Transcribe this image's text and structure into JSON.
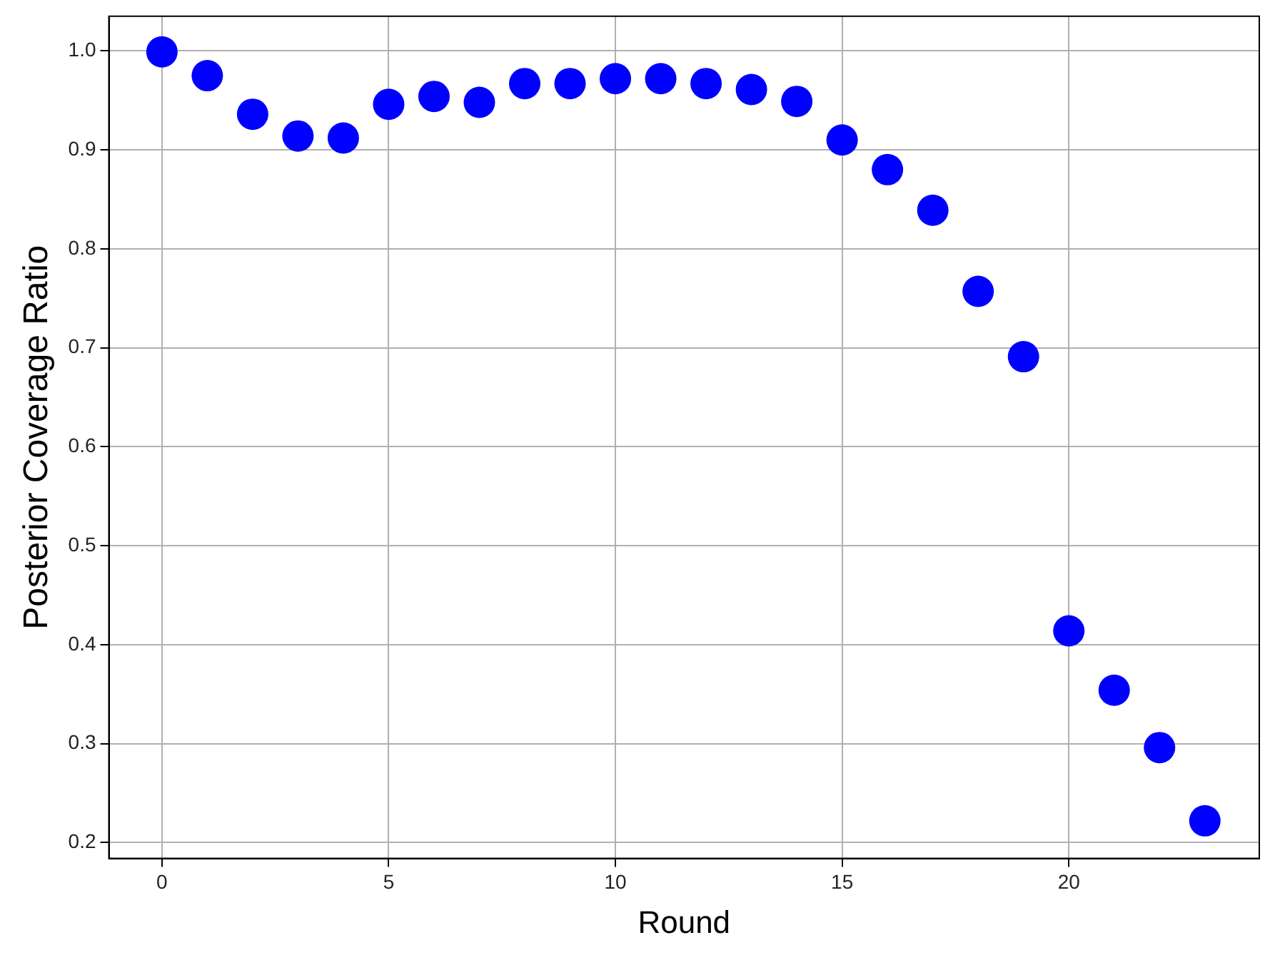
{
  "chart_data": {
    "type": "scatter",
    "xlabel": "Round",
    "ylabel": "Posterior Coverage Ratio",
    "x": [
      0,
      1,
      2,
      3,
      4,
      5,
      6,
      7,
      8,
      9,
      10,
      11,
      12,
      13,
      14,
      15,
      16,
      17,
      18,
      19,
      20,
      21,
      22,
      23
    ],
    "series": [
      {
        "color": "#0000ff",
        "values": [
          0.999,
          0.975,
          0.936,
          0.914,
          0.912,
          0.946,
          0.954,
          0.948,
          0.967,
          0.967,
          0.972,
          0.972,
          0.967,
          0.961,
          0.949,
          0.91,
          0.88,
          0.839,
          0.757,
          0.691,
          0.414,
          0.354,
          0.296,
          0.222
        ]
      }
    ],
    "xlim": [
      -1.17,
      24.2
    ],
    "xticks": [
      0,
      5,
      10,
      15,
      20
    ],
    "ylim": [
      0.184,
      1.035
    ],
    "yticks": [
      0.2,
      0.3,
      0.4,
      0.5,
      0.6,
      0.7,
      0.8,
      0.9,
      {
        "value": 1,
        "label": "1.0"
      }
    ],
    "grid": true,
    "legend": false,
    "marker": "circle"
  }
}
